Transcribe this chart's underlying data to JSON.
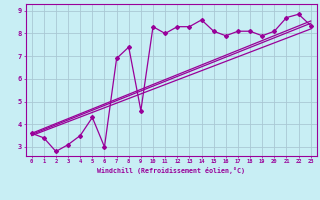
{
  "xlabel": "Windchill (Refroidissement éolien,°C)",
  "bg_color": "#c8eef4",
  "line_color": "#990099",
  "grid_color": "#aac8d4",
  "xlim": [
    -0.5,
    23.5
  ],
  "ylim": [
    2.6,
    9.3
  ],
  "yticks": [
    3,
    4,
    5,
    6,
    7,
    8,
    9
  ],
  "xticks": [
    0,
    1,
    2,
    3,
    4,
    5,
    6,
    7,
    8,
    9,
    10,
    11,
    12,
    13,
    14,
    15,
    16,
    17,
    18,
    19,
    20,
    21,
    22,
    23
  ],
  "series1_x": [
    0,
    1,
    2,
    3,
    4,
    5,
    6,
    7,
    8,
    9,
    10,
    11,
    12,
    13,
    14,
    15,
    16,
    17,
    18,
    19,
    20,
    21,
    22,
    23
  ],
  "series1_y": [
    3.6,
    3.4,
    2.8,
    3.1,
    3.5,
    4.3,
    3.0,
    6.9,
    7.4,
    4.6,
    8.3,
    8.0,
    8.3,
    8.3,
    8.6,
    8.1,
    7.9,
    8.1,
    8.1,
    7.9,
    8.1,
    8.7,
    8.85,
    8.35
  ],
  "trend1_x": [
    0,
    23
  ],
  "trend1_y": [
    3.5,
    8.2
  ],
  "trend2_x": [
    0,
    23
  ],
  "trend2_y": [
    3.55,
    8.45
  ],
  "trend3_x": [
    0,
    23
  ],
  "trend3_y": [
    3.6,
    8.55
  ]
}
